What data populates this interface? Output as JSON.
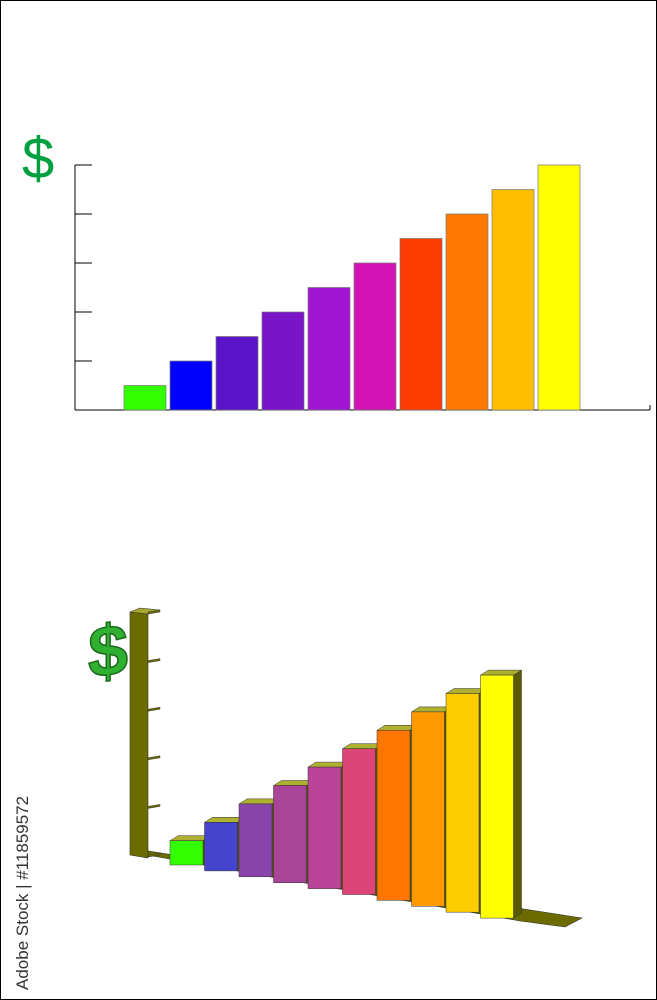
{
  "chart_data": [
    {
      "type": "bar",
      "title": "$",
      "title_color": "#00a040",
      "values": [
        1,
        2,
        3,
        4,
        5,
        6,
        7,
        8,
        9,
        10
      ],
      "colors": [
        "#33ff00",
        "#0000ff",
        "#5a14c8",
        "#7a14c8",
        "#a014d2",
        "#d214b4",
        "#ff3c00",
        "#ff7800",
        "#ffbe00",
        "#ffff00"
      ],
      "ylim": [
        0,
        10
      ],
      "yticks": [
        0,
        2,
        4,
        6,
        8,
        10
      ]
    },
    {
      "type": "bar3d",
      "title": "$",
      "title_color": "#30b030",
      "values": [
        1,
        2,
        3,
        4,
        5,
        6,
        7,
        8,
        9,
        10
      ],
      "colors": [
        "#33ff00",
        "#4444cc",
        "#8844aa",
        "#aa4499",
        "#bb4499",
        "#dd4477",
        "#ff7700",
        "#ff9900",
        "#ffcc00",
        "#ffff00"
      ],
      "axis_color": "#6b6b00",
      "ylim": [
        0,
        10
      ],
      "yticks": [
        0,
        2,
        4,
        6,
        8,
        10
      ]
    }
  ],
  "credit": "Adobe Stock | #11859572"
}
